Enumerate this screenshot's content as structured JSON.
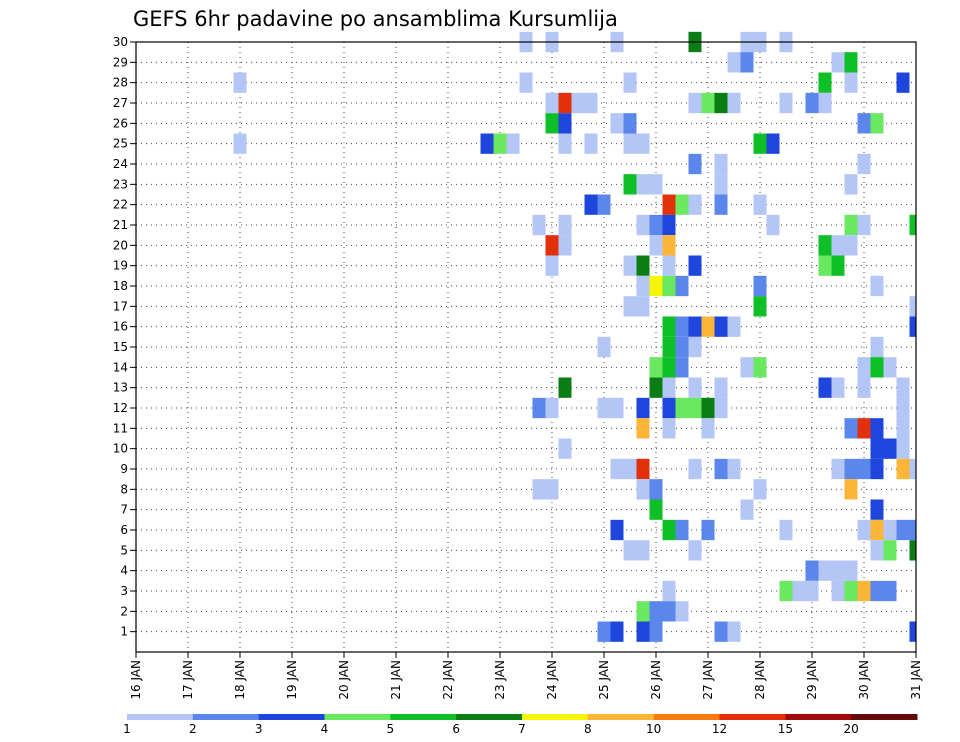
{
  "chart_data": {
    "type": "heatmap",
    "title": "GEFS 6hr padavine po ansamblima Kursumlija",
    "xlabel": "",
    "ylabel": "",
    "x_ticks": [
      "16 JAN",
      "17 JAN",
      "18 JAN",
      "19 JAN",
      "20 JAN",
      "21 JAN",
      "22 JAN",
      "23 JAN",
      "24 JAN",
      "25 JAN",
      "26 JAN",
      "27 JAN",
      "28 JAN",
      "29 JAN",
      "30 JAN",
      "31 JAN"
    ],
    "y_ticks": [
      1,
      2,
      3,
      4,
      5,
      6,
      7,
      8,
      9,
      10,
      11,
      12,
      13,
      14,
      15,
      16,
      17,
      18,
      19,
      20,
      21,
      22,
      23,
      24,
      25,
      26,
      27,
      28,
      29,
      30
    ],
    "x_range_days": [
      16,
      31
    ],
    "y_range_members": [
      0,
      30
    ],
    "time_step_hours": 6,
    "grid": "dotted",
    "colorbar": {
      "placement": "bottom",
      "labels": [
        "1",
        "2",
        "3",
        "4",
        "5",
        "6",
        "7",
        "8",
        "10",
        "12",
        "15",
        "20"
      ],
      "colors": [
        "#b3c6f5",
        "#5b86ec",
        "#1e46dc",
        "#6ae860",
        "#0fbf28",
        "#0a7d14",
        "#f5f50a",
        "#fbb638",
        "#fb7a10",
        "#e1300a",
        "#a00a0a",
        "#640a0a"
      ]
    },
    "cells_format": "[day_of_jan, member, color_index]",
    "cells": [
      [
        23.5,
        30,
        0
      ],
      [
        24.0,
        30,
        0
      ],
      [
        25.25,
        30,
        0
      ],
      [
        26.75,
        30,
        5
      ],
      [
        27.75,
        30,
        0
      ],
      [
        28.0,
        30,
        0
      ],
      [
        28.5,
        30,
        0
      ],
      [
        27.5,
        29,
        0
      ],
      [
        27.75,
        29,
        1
      ],
      [
        29.5,
        29,
        0
      ],
      [
        29.75,
        29,
        4
      ],
      [
        18.0,
        28,
        0
      ],
      [
        23.5,
        28,
        0
      ],
      [
        25.5,
        28,
        0
      ],
      [
        29.25,
        28,
        4
      ],
      [
        29.75,
        28,
        0
      ],
      [
        30.75,
        28,
        2
      ],
      [
        24.0,
        27,
        0
      ],
      [
        24.25,
        27,
        9
      ],
      [
        24.5,
        27,
        0
      ],
      [
        24.75,
        27,
        0
      ],
      [
        26.75,
        27,
        0
      ],
      [
        27.0,
        27,
        3
      ],
      [
        27.25,
        27,
        5
      ],
      [
        27.5,
        27,
        0
      ],
      [
        28.5,
        27,
        0
      ],
      [
        29.0,
        27,
        1
      ],
      [
        29.25,
        27,
        0
      ],
      [
        24.0,
        26,
        4
      ],
      [
        24.25,
        26,
        2
      ],
      [
        25.25,
        26,
        0
      ],
      [
        25.5,
        26,
        1
      ],
      [
        30.0,
        26,
        1
      ],
      [
        30.25,
        26,
        3
      ],
      [
        18.0,
        25,
        0
      ],
      [
        22.75,
        25,
        2
      ],
      [
        23.0,
        25,
        3
      ],
      [
        23.25,
        25,
        0
      ],
      [
        24.25,
        25,
        0
      ],
      [
        24.75,
        25,
        0
      ],
      [
        25.5,
        25,
        0
      ],
      [
        25.75,
        25,
        0
      ],
      [
        28.0,
        25,
        4
      ],
      [
        28.25,
        25,
        2
      ],
      [
        26.75,
        24,
        1
      ],
      [
        27.25,
        24,
        0
      ],
      [
        30.0,
        24,
        0
      ],
      [
        25.5,
        23,
        4
      ],
      [
        25.75,
        23,
        0
      ],
      [
        26.0,
        23,
        0
      ],
      [
        27.25,
        23,
        0
      ],
      [
        29.75,
        23,
        0
      ],
      [
        24.75,
        22,
        2
      ],
      [
        25.0,
        22,
        1
      ],
      [
        26.25,
        22,
        9
      ],
      [
        26.5,
        22,
        3
      ],
      [
        26.75,
        22,
        0
      ],
      [
        27.25,
        22,
        1
      ],
      [
        28.0,
        22,
        0
      ],
      [
        23.75,
        21,
        0
      ],
      [
        24.25,
        21,
        0
      ],
      [
        25.75,
        21,
        0
      ],
      [
        26.0,
        21,
        1
      ],
      [
        26.25,
        21,
        2
      ],
      [
        28.25,
        21,
        0
      ],
      [
        29.75,
        21,
        3
      ],
      [
        30.0,
        21,
        0
      ],
      [
        31.0,
        21,
        4
      ],
      [
        24.0,
        20,
        9
      ],
      [
        24.25,
        20,
        0
      ],
      [
        26.0,
        20,
        0
      ],
      [
        26.25,
        20,
        7
      ],
      [
        29.25,
        20,
        4
      ],
      [
        29.5,
        20,
        0
      ],
      [
        29.75,
        20,
        0
      ],
      [
        24.0,
        19,
        0
      ],
      [
        25.5,
        19,
        0
      ],
      [
        25.75,
        19,
        5
      ],
      [
        26.25,
        19,
        0
      ],
      [
        26.75,
        19,
        2
      ],
      [
        29.25,
        19,
        3
      ],
      [
        29.5,
        19,
        4
      ],
      [
        25.75,
        18,
        0
      ],
      [
        26.0,
        18,
        6
      ],
      [
        26.25,
        18,
        3
      ],
      [
        26.5,
        18,
        1
      ],
      [
        28.0,
        18,
        1
      ],
      [
        30.25,
        18,
        0
      ],
      [
        25.5,
        17,
        0
      ],
      [
        25.75,
        17,
        0
      ],
      [
        28.0,
        17,
        4
      ],
      [
        31.0,
        17,
        0
      ],
      [
        26.25,
        16,
        4
      ],
      [
        26.5,
        16,
        1
      ],
      [
        26.75,
        16,
        2
      ],
      [
        27.0,
        16,
        7
      ],
      [
        27.25,
        16,
        2
      ],
      [
        27.5,
        16,
        0
      ],
      [
        31.0,
        16,
        2
      ],
      [
        25.0,
        15,
        0
      ],
      [
        26.25,
        15,
        4
      ],
      [
        26.5,
        15,
        1
      ],
      [
        26.75,
        15,
        0
      ],
      [
        30.25,
        15,
        0
      ],
      [
        26.0,
        14,
        3
      ],
      [
        26.25,
        14,
        4
      ],
      [
        26.5,
        14,
        1
      ],
      [
        27.75,
        14,
        0
      ],
      [
        28.0,
        14,
        3
      ],
      [
        30.0,
        14,
        0
      ],
      [
        30.25,
        14,
        4
      ],
      [
        30.5,
        14,
        0
      ],
      [
        24.25,
        13,
        5
      ],
      [
        26.0,
        13,
        5
      ],
      [
        26.25,
        13,
        0
      ],
      [
        26.75,
        13,
        0
      ],
      [
        27.25,
        13,
        0
      ],
      [
        29.25,
        13,
        2
      ],
      [
        29.5,
        13,
        0
      ],
      [
        30.0,
        13,
        0
      ],
      [
        30.75,
        13,
        0
      ],
      [
        23.75,
        12,
        1
      ],
      [
        24.0,
        12,
        0
      ],
      [
        25.0,
        12,
        0
      ],
      [
        25.25,
        12,
        0
      ],
      [
        25.75,
        12,
        2
      ],
      [
        26.25,
        12,
        2
      ],
      [
        26.5,
        12,
        3
      ],
      [
        26.75,
        12,
        3
      ],
      [
        27.0,
        12,
        5
      ],
      [
        27.25,
        12,
        0
      ],
      [
        30.75,
        12,
        0
      ],
      [
        25.75,
        11,
        7
      ],
      [
        26.25,
        11,
        0
      ],
      [
        27.0,
        11,
        0
      ],
      [
        29.75,
        11,
        1
      ],
      [
        30.0,
        11,
        9
      ],
      [
        30.25,
        11,
        2
      ],
      [
        30.75,
        11,
        0
      ],
      [
        24.25,
        10,
        0
      ],
      [
        30.25,
        10,
        2
      ],
      [
        30.5,
        10,
        2
      ],
      [
        30.75,
        10,
        0
      ],
      [
        25.25,
        9,
        0
      ],
      [
        25.5,
        9,
        0
      ],
      [
        25.75,
        9,
        9
      ],
      [
        26.75,
        9,
        0
      ],
      [
        27.25,
        9,
        1
      ],
      [
        27.5,
        9,
        0
      ],
      [
        29.5,
        9,
        0
      ],
      [
        29.75,
        9,
        1
      ],
      [
        30.0,
        9,
        1
      ],
      [
        30.25,
        9,
        2
      ],
      [
        30.75,
        9,
        7
      ],
      [
        31.0,
        9,
        0
      ],
      [
        23.75,
        8,
        0
      ],
      [
        24.0,
        8,
        0
      ],
      [
        25.75,
        8,
        0
      ],
      [
        26.0,
        8,
        1
      ],
      [
        28.0,
        8,
        0
      ],
      [
        29.75,
        8,
        7
      ],
      [
        26.0,
        7,
        4
      ],
      [
        27.75,
        7,
        0
      ],
      [
        30.25,
        7,
        2
      ],
      [
        25.25,
        6,
        2
      ],
      [
        26.25,
        6,
        4
      ],
      [
        26.5,
        6,
        1
      ],
      [
        27.0,
        6,
        1
      ],
      [
        28.5,
        6,
        0
      ],
      [
        30.0,
        6,
        0
      ],
      [
        30.25,
        6,
        7
      ],
      [
        30.5,
        6,
        0
      ],
      [
        30.75,
        6,
        1
      ],
      [
        31.0,
        6,
        1
      ],
      [
        25.5,
        5,
        0
      ],
      [
        25.75,
        5,
        0
      ],
      [
        26.75,
        5,
        0
      ],
      [
        30.25,
        5,
        0
      ],
      [
        30.5,
        5,
        3
      ],
      [
        31.0,
        5,
        5
      ],
      [
        29.0,
        4,
        1
      ],
      [
        29.25,
        4,
        0
      ],
      [
        29.5,
        4,
        0
      ],
      [
        29.75,
        4,
        0
      ],
      [
        26.25,
        3,
        0
      ],
      [
        28.5,
        3,
        3
      ],
      [
        28.75,
        3,
        0
      ],
      [
        29.0,
        3,
        0
      ],
      [
        29.5,
        3,
        0
      ],
      [
        29.75,
        3,
        3
      ],
      [
        30.0,
        3,
        7
      ],
      [
        30.25,
        3,
        1
      ],
      [
        30.5,
        3,
        1
      ],
      [
        25.75,
        2,
        3
      ],
      [
        26.0,
        2,
        1
      ],
      [
        26.25,
        2,
        1
      ],
      [
        26.5,
        2,
        0
      ],
      [
        25.0,
        1,
        1
      ],
      [
        25.25,
        1,
        2
      ],
      [
        25.75,
        1,
        2
      ],
      [
        26.0,
        1,
        1
      ],
      [
        27.25,
        1,
        1
      ],
      [
        27.5,
        1,
        0
      ],
      [
        31.0,
        1,
        2
      ]
    ]
  }
}
